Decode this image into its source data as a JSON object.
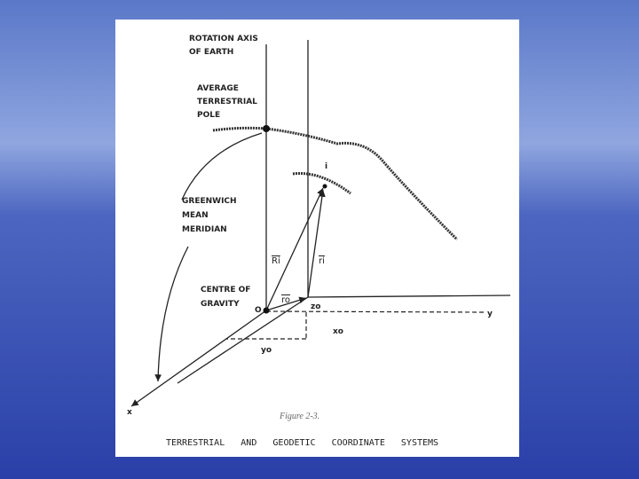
{
  "labels": {
    "rotation_axis_1": "ROTATION AXIS",
    "rotation_axis_2": "OF EARTH",
    "pole_1": "AVERAGE",
    "pole_2": "TERRESTRIAL",
    "pole_3": "POLE",
    "point": "i",
    "meridian_1": "GREENWICH",
    "meridian_2": "MEAN",
    "meridian_3": "MERIDIAN",
    "big_r": "Ri",
    "small_r": "ri",
    "r_zero": "ro",
    "centre_1": "CENTRE OF",
    "centre_2": "GRAVITY",
    "origin": "O",
    "z_zero": "zo",
    "x_zero": "xo",
    "y_zero": "yo",
    "y_axis": "y",
    "x_axis": "x"
  },
  "figure": "Figure 2-3.",
  "caption": "TERRESTRIAL   AND   GEODETIC   COORDINATE   SYSTEMS"
}
